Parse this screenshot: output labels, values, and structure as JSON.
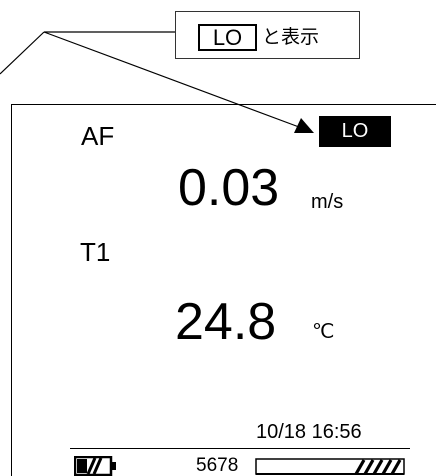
{
  "callout": {
    "badge": "LO",
    "suffix": "と表示"
  },
  "display": {
    "airflow": {
      "label": "AF",
      "status_badge": "LO",
      "value": "0.03",
      "unit": "m/s"
    },
    "temperature": {
      "label": "T1",
      "value": "24.8",
      "unit": "℃"
    },
    "datetime": "10/18 16:56",
    "status_bar": {
      "counter": "5678"
    }
  },
  "icons": {
    "battery": "battery-icon",
    "level_bar": "hatched-level-bar"
  },
  "colors": {
    "ink": "#000000",
    "badge_text": "#ffffff"
  }
}
